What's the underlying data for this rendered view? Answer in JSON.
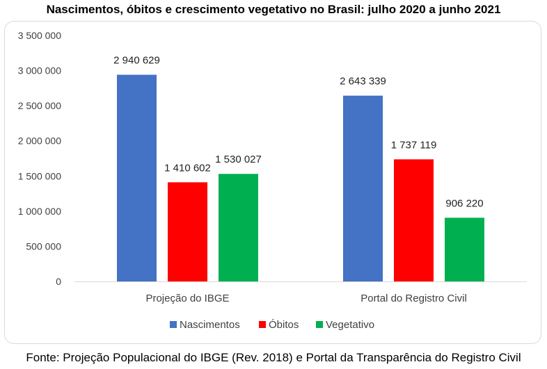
{
  "chart_data": {
    "type": "bar",
    "title": "Nascimentos, óbitos e crescimento vegetativo no Brasil: julho 2020 a junho 2021",
    "categories": [
      "Projeção do IBGE",
      "Portal do Registro Civil"
    ],
    "series": [
      {
        "name": "Nascimentos",
        "color": "#4472c4",
        "values": [
          2940629,
          2643339
        ],
        "labels": [
          "2 940 629",
          "2 643 339"
        ]
      },
      {
        "name": "Óbitos",
        "color": "#ff0000",
        "values": [
          1410602,
          1737119
        ],
        "labels": [
          "1 410 602",
          "1 737 119"
        ]
      },
      {
        "name": "Vegetativo",
        "color": "#00b050",
        "values": [
          1530027,
          906220
        ],
        "labels": [
          "1 530 027",
          "906 220"
        ]
      }
    ],
    "ylim": [
      0,
      3500000
    ],
    "yticks": [
      0,
      500000,
      1000000,
      1500000,
      2000000,
      2500000,
      3000000,
      3500000
    ],
    "ytick_labels": [
      "0",
      "500 000",
      "1 000 000",
      "1 500 000",
      "2 000 000",
      "2 500 000",
      "3 000 000",
      "3 500 000"
    ],
    "grid": false,
    "legend": "bottom",
    "xlabel": "",
    "ylabel": "",
    "source": "Fonte: Projeção Populacional do IBGE (Rev. 2018) e Portal da Transparência do Registro Civil"
  }
}
